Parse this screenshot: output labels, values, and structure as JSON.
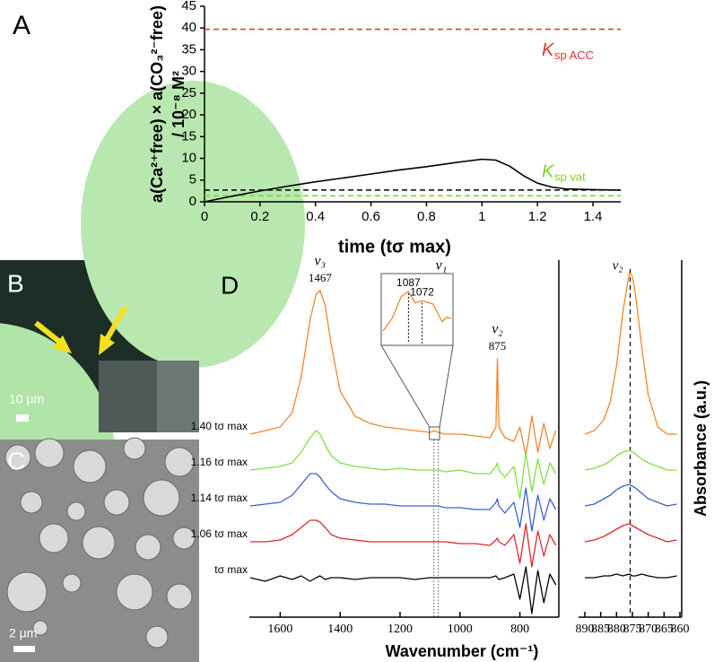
{
  "chart_data": [
    {
      "type": "line",
      "panel": "A",
      "ylabel": [
        "a(Ca²⁺free) × a(CO₃²⁻free)",
        "/ 10⁻⁸ M²"
      ],
      "xlabel": "time (tσ max)",
      "xlim": [
        0,
        1.5
      ],
      "xticks": [
        0,
        0.2,
        0.4,
        0.6,
        0.8,
        1,
        1.2,
        1.4
      ],
      "ylim": [
        0,
        45
      ],
      "yticks": [
        0,
        5,
        10,
        15,
        20,
        25,
        30,
        35,
        40,
        45
      ],
      "x": [
        0,
        0.1,
        0.2,
        0.3,
        0.4,
        0.5,
        0.6,
        0.7,
        0.8,
        0.9,
        1.0,
        1.05,
        1.1,
        1.15,
        1.2,
        1.25,
        1.3,
        1.4,
        1.5
      ],
      "series": [
        {
          "color": "#000000",
          "values": [
            0,
            1.3,
            2.5,
            3.6,
            4.6,
            5.5,
            6.4,
            7.3,
            8.1,
            9.0,
            9.8,
            9.6,
            8.2,
            6.0,
            4.3,
            3.4,
            3.0,
            2.8,
            2.7
          ]
        }
      ],
      "hlines": [
        {
          "value": 39.7,
          "color": "#e03030",
          "label": "K",
          "label_sub": "sp ACC"
        },
        {
          "value": 2.7,
          "color": "#000000"
        },
        {
          "value": 1.4,
          "color": "#7ed321",
          "label": "K",
          "label_sub": "sp vat"
        }
      ]
    },
    {
      "type": "line",
      "panel": "D",
      "xlabel": "Wavenumber (cm⁻¹)",
      "xlim": [
        1700,
        670
      ],
      "xticks": [
        1600,
        1400,
        1200,
        1000,
        800
      ],
      "ylim": [
        0.3,
        10.3
      ],
      "x": [
        1700,
        1650,
        1600,
        1560,
        1530,
        1500,
        1480,
        1467,
        1450,
        1430,
        1400,
        1350,
        1300,
        1250,
        1200,
        1150,
        1100,
        1087,
        1072,
        1050,
        1000,
        950,
        900,
        880,
        875,
        870,
        850,
        820,
        800,
        780,
        760,
        740,
        720,
        700,
        680
      ],
      "series": [
        {
          "name": "1.40 tσ max",
          "color": "#f0862a",
          "values": [
            5.4,
            5.5,
            5.6,
            6.0,
            7.0,
            8.6,
            9.3,
            9.4,
            9.0,
            7.9,
            6.6,
            5.9,
            5.7,
            5.6,
            5.55,
            5.5,
            5.45,
            5.5,
            5.45,
            5.4,
            5.4,
            5.35,
            5.3,
            5.6,
            7.5,
            5.6,
            5.3,
            5.2,
            5.6,
            4.8,
            5.9,
            4.9,
            5.7,
            5.0,
            5.5
          ]
        },
        {
          "name": "1.16 tσ max",
          "color": "#7fe040",
          "values": [
            4.4,
            4.45,
            4.5,
            4.6,
            4.9,
            5.3,
            5.5,
            5.4,
            5.1,
            4.8,
            4.6,
            4.5,
            4.45,
            4.4,
            4.45,
            4.4,
            4.4,
            4.4,
            4.4,
            4.35,
            4.4,
            4.3,
            4.3,
            4.5,
            4.6,
            4.4,
            4.2,
            4.5,
            3.6,
            4.9,
            3.8,
            4.7,
            4.0,
            4.6,
            4.3
          ]
        },
        {
          "name": "1.14 tσ max",
          "color": "#3a5fcd",
          "values": [
            3.4,
            3.45,
            3.5,
            3.7,
            4.0,
            4.3,
            4.3,
            4.2,
            4.0,
            3.8,
            3.6,
            3.5,
            3.45,
            3.45,
            3.4,
            3.4,
            3.4,
            3.4,
            3.4,
            3.35,
            3.35,
            3.3,
            3.3,
            3.5,
            3.6,
            3.4,
            3.2,
            3.5,
            2.8,
            3.9,
            2.7,
            3.7,
            3.0,
            3.6,
            3.3
          ]
        },
        {
          "name": "1.06 tσ max",
          "color": "#e02828",
          "values": [
            2.4,
            2.4,
            2.45,
            2.6,
            2.8,
            3.0,
            3.0,
            2.95,
            2.8,
            2.6,
            2.5,
            2.45,
            2.4,
            2.4,
            2.4,
            2.4,
            2.4,
            2.4,
            2.4,
            2.4,
            2.35,
            2.35,
            2.3,
            2.45,
            2.5,
            2.4,
            2.3,
            2.6,
            1.8,
            2.9,
            1.7,
            2.7,
            2.0,
            2.6,
            2.3
          ]
        },
        {
          "name": "tσ max",
          "color": "#000000",
          "values": [
            1.4,
            1.3,
            1.45,
            1.35,
            1.45,
            1.3,
            1.4,
            1.45,
            1.35,
            1.4,
            1.4,
            1.35,
            1.4,
            1.4,
            1.4,
            1.35,
            1.4,
            1.4,
            1.4,
            1.4,
            1.4,
            1.4,
            1.4,
            1.45,
            1.4,
            1.35,
            1.4,
            1.5,
            0.8,
            1.7,
            0.4,
            1.6,
            0.7,
            1.5,
            1.2
          ]
        }
      ],
      "peaks": [
        {
          "label": "ν₃",
          "value": 1467
        },
        {
          "label": "ν₂",
          "value": 875
        }
      ],
      "inset": {
        "label": "ν₁",
        "xlim": [
          1115,
          1040
        ],
        "ylim": [
          0,
          10
        ],
        "x": [
          1115,
          1105,
          1095,
          1087,
          1080,
          1072,
          1060,
          1050,
          1045,
          1040
        ],
        "values": [
          2,
          4,
          7.5,
          8.3,
          6.5,
          6.8,
          6.3,
          3.5,
          4.2,
          4
        ],
        "peaks": [
          1087,
          1072
        ]
      }
    },
    {
      "type": "line",
      "ylabel": "Absorbance (a.u.)",
      "xlim": [
        890,
        860
      ],
      "xticks": [
        890,
        885,
        880,
        875,
        870,
        865,
        860
      ],
      "ylim": [
        0.3,
        10.3
      ],
      "x": [
        890,
        887,
        884,
        882,
        880,
        878,
        876,
        875,
        874,
        872,
        870,
        867,
        864,
        861
      ],
      "series": [
        {
          "color": "#f0862a",
          "values": [
            5.4,
            5.5,
            5.8,
            6.3,
            7.3,
            8.8,
            9.9,
            9.8,
            9.3,
            7.8,
            6.5,
            5.6,
            5.4,
            5.4
          ]
        },
        {
          "color": "#7fe040",
          "values": [
            4.4,
            4.45,
            4.55,
            4.65,
            4.8,
            4.9,
            4.95,
            4.9,
            4.85,
            4.7,
            4.6,
            4.5,
            4.4,
            4.4
          ]
        },
        {
          "color": "#3a5fcd",
          "values": [
            3.4,
            3.45,
            3.6,
            3.7,
            3.85,
            3.95,
            4.0,
            3.95,
            3.9,
            3.75,
            3.6,
            3.5,
            3.4,
            3.45
          ]
        },
        {
          "color": "#e02828",
          "values": [
            2.4,
            2.45,
            2.55,
            2.65,
            2.75,
            2.85,
            2.9,
            2.85,
            2.8,
            2.7,
            2.6,
            2.5,
            2.4,
            2.45
          ]
        },
        {
          "color": "#000000",
          "values": [
            1.4,
            1.4,
            1.45,
            1.45,
            1.5,
            1.45,
            1.5,
            1.45,
            1.45,
            1.5,
            1.45,
            1.4,
            1.4,
            1.45
          ]
        }
      ],
      "vline": {
        "value": 875.7,
        "label": "ν₂"
      }
    }
  ],
  "images": [
    {
      "panel": "B",
      "scale_bar": "10 µm"
    },
    {
      "panel": "C",
      "scale_bar": "2 µm"
    }
  ]
}
